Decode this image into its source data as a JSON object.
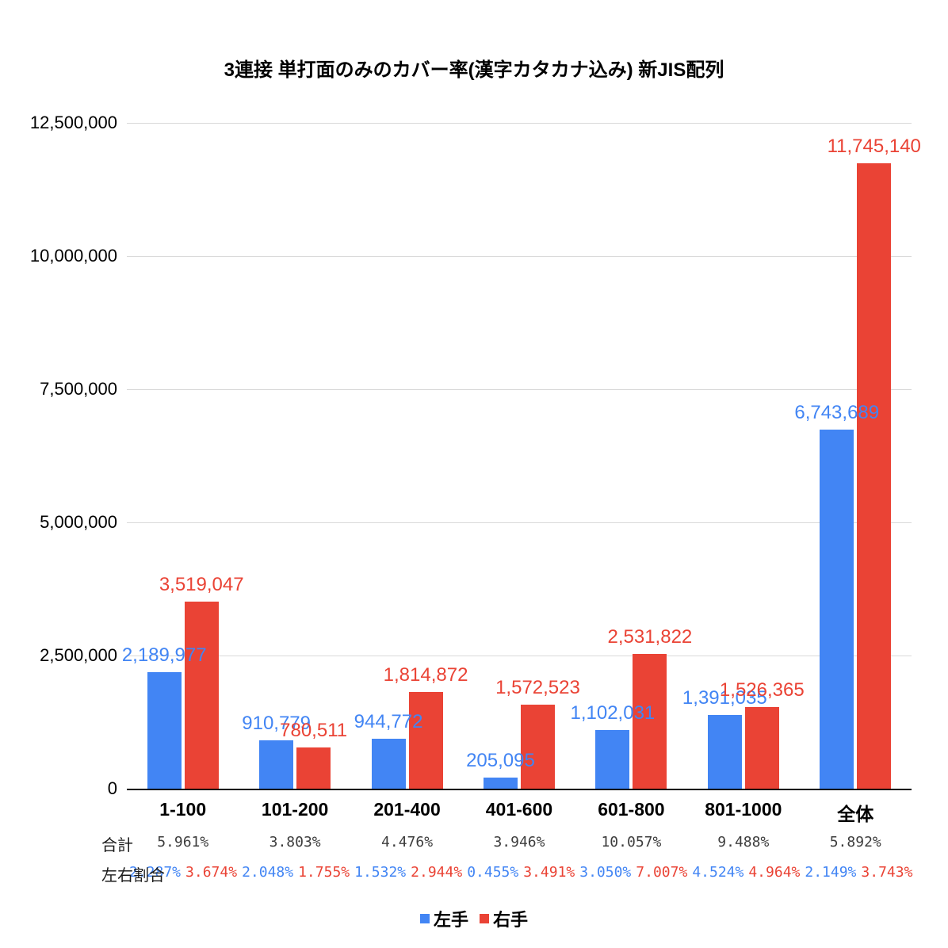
{
  "title": "3連接 単打面のみのカバー率(漢字カタカナ込み) 新JIS配列",
  "rows": {
    "total_label": "合計",
    "ratio_label": "左右割合"
  },
  "legend": {
    "items": [
      {
        "label": "左手",
        "color": "#4285f4"
      },
      {
        "label": "右手",
        "color": "#ea4335"
      }
    ],
    "position": "bottom"
  },
  "chart_data": {
    "type": "bar",
    "title": "3連接 単打面のみのカバー率(漢字カタカナ込み) 新JIS配列",
    "xlabel": "",
    "ylabel": "",
    "grid": true,
    "legend_position": "bottom",
    "ylim": [
      0,
      12500000
    ],
    "yticks": [
      {
        "label": "0",
        "value": 0
      },
      {
        "label": "2,500,000",
        "value": 2500000
      },
      {
        "label": "5,000,000",
        "value": 5000000
      },
      {
        "label": "7,500,000",
        "value": 7500000
      },
      {
        "label": "10,000,000",
        "value": 10000000
      },
      {
        "label": "12,500,000",
        "value": 12500000
      }
    ],
    "categories": [
      "1-100",
      "101-200",
      "201-400",
      "401-600",
      "601-800",
      "801-1000",
      "全体"
    ],
    "series": [
      {
        "name": "左手",
        "key": "left-hand",
        "color": "#4285f4",
        "values": [
          2189977,
          910779,
          944772,
          205095,
          1102031,
          1391035,
          6743689
        ],
        "labels": [
          "2,189,977",
          "910,779",
          "944,772",
          "205,095",
          "1,102,031",
          "1,391,035",
          "6,743,689"
        ]
      },
      {
        "name": "右手",
        "key": "right-hand",
        "color": "#ea4335",
        "values": [
          3519047,
          780511,
          1814872,
          1572523,
          2531822,
          1526365,
          11745140
        ],
        "labels": [
          "3,519,047",
          "780,511",
          "1,814,872",
          "1,572,523",
          "2,531,822",
          "1,526,365",
          "11,745,140"
        ]
      }
    ],
    "totals": [
      "5.961%",
      "3.803%",
      "4.476%",
      "3.946%",
      "10.057%",
      "9.488%",
      "5.892%"
    ],
    "ratios": [
      [
        "2.287%",
        "3.674%"
      ],
      [
        "2.048%",
        "1.755%"
      ],
      [
        "1.532%",
        "2.944%"
      ],
      [
        "0.455%",
        "3.491%"
      ],
      [
        "3.050%",
        "7.007%"
      ],
      [
        "4.524%",
        "4.964%"
      ],
      [
        "2.149%",
        "3.743%"
      ]
    ]
  }
}
